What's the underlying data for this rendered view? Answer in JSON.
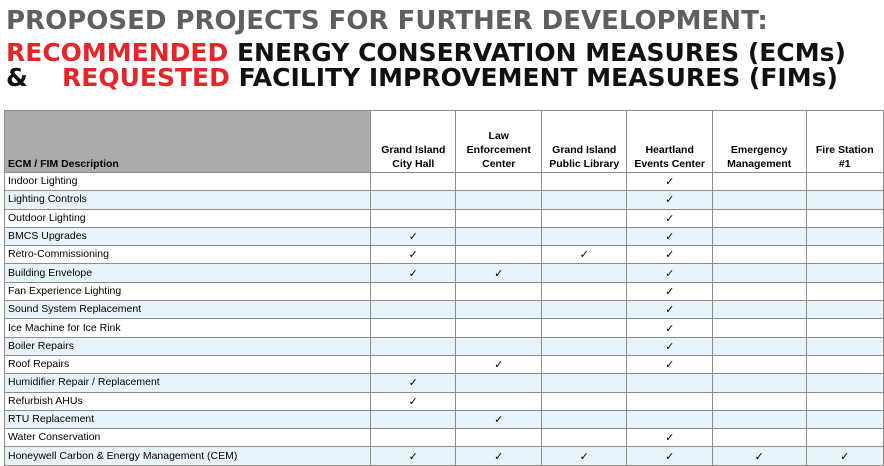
{
  "heading": {
    "line1": "PROPOSED PROJECTS FOR FURTHER DEVELOPMENT:",
    "line2_red": "RECOMMENDED",
    "line2_rest": " ENERGY CONSERVATION MEASURES (ECMs)",
    "line3_amp": "&",
    "line3_red": "REQUESTED",
    "line3_rest": " FACILITY IMPROVEMENT MEASURES (FIMs)"
  },
  "table": {
    "desc_header": "ECM / FIM Description",
    "columns": [
      "Grand Island\nCity Hall",
      "Law\nEnforcement\nCenter",
      "Grand Island\nPublic Library",
      "Heartland\nEvents Center",
      "Emergency\nManagement",
      "Fire Station\n#1"
    ],
    "check_mark": "✓",
    "rows": [
      {
        "label": "Indoor Lighting",
        "checks": [
          false,
          false,
          false,
          true,
          false,
          false
        ]
      },
      {
        "label": "Lighting Controls",
        "checks": [
          false,
          false,
          false,
          true,
          false,
          false
        ]
      },
      {
        "label": "Outdoor Lighting",
        "checks": [
          false,
          false,
          false,
          true,
          false,
          false
        ]
      },
      {
        "label": "BMCS Upgrades",
        "checks": [
          true,
          false,
          false,
          true,
          false,
          false
        ]
      },
      {
        "label": "Retro-Commissioning",
        "checks": [
          true,
          false,
          true,
          true,
          false,
          false
        ]
      },
      {
        "label": "Building Envelope",
        "checks": [
          true,
          true,
          false,
          true,
          false,
          false
        ]
      },
      {
        "label": "Fan Experience Lighting",
        "checks": [
          false,
          false,
          false,
          true,
          false,
          false
        ]
      },
      {
        "label": "Sound System Replacement",
        "checks": [
          false,
          false,
          false,
          true,
          false,
          false
        ]
      },
      {
        "label": "Ice Machine for Ice Rink",
        "checks": [
          false,
          false,
          false,
          true,
          false,
          false
        ]
      },
      {
        "label": "Boiler Repairs",
        "checks": [
          false,
          false,
          false,
          true,
          false,
          false
        ]
      },
      {
        "label": "Roof Repairs",
        "checks": [
          false,
          true,
          false,
          true,
          false,
          false
        ]
      },
      {
        "label": "Humidifier Repair / Replacement",
        "checks": [
          true,
          false,
          false,
          false,
          false,
          false
        ]
      },
      {
        "label": "Refurbish AHUs",
        "checks": [
          true,
          false,
          false,
          false,
          false,
          false
        ]
      },
      {
        "label": "RTU Replacement",
        "checks": [
          false,
          true,
          false,
          false,
          false,
          false
        ]
      },
      {
        "label": "Water Conservation",
        "checks": [
          false,
          false,
          false,
          true,
          false,
          false
        ]
      },
      {
        "label": "Honeywell Carbon & Energy Management (CEM)",
        "checks": [
          true,
          true,
          true,
          true,
          true,
          true
        ]
      }
    ]
  },
  "colors": {
    "title_gray": "#5f5f5f",
    "accent_red": "#e5252a",
    "header_gray": "#ababab",
    "row_tint": "#e8f4fb"
  }
}
